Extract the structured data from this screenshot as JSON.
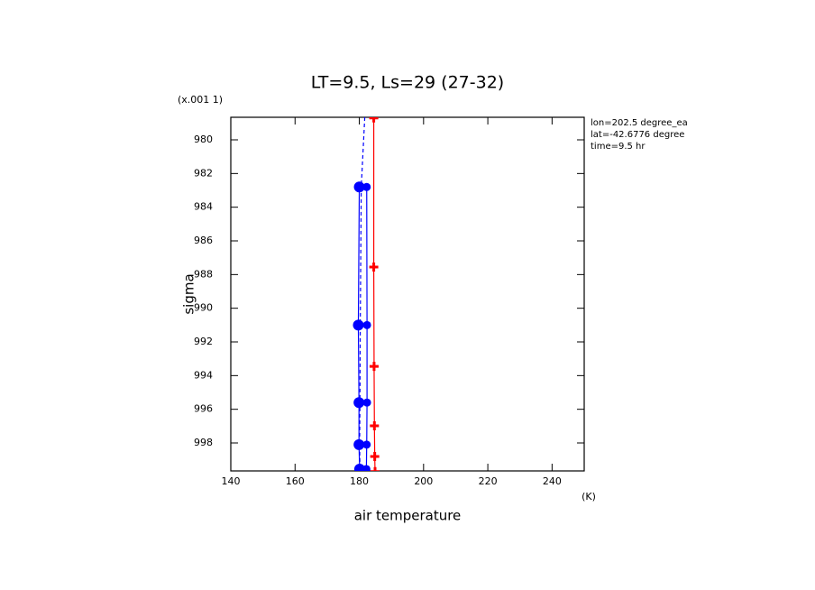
{
  "chart_data": {
    "type": "line",
    "title": "LT=9.5, Ls=29 (27-32)",
    "y_scale_label": "(x.001 1)",
    "y_label": "sigma",
    "x_label": "air temperature",
    "x_unit": "(K)",
    "annotations": [
      "lon=202.5 degree_ea",
      "lat=-42.6776 degree",
      "time=9.5 hr"
    ],
    "xlim": [
      140,
      250
    ],
    "xticks": [
      140,
      160,
      180,
      200,
      220,
      240
    ],
    "ylim": [
      999.66,
      978.66
    ],
    "yticks": [
      980,
      982,
      984,
      986,
      988,
      990,
      992,
      994,
      996,
      998
    ],
    "series": [
      {
        "color": "#0000ff",
        "dashed": true,
        "marker": "none",
        "sigma": [
          978.66,
          982.8,
          991.0,
          995.6,
          998.1,
          999.55
        ],
        "temperature": [
          181.7,
          180.6,
          180.3,
          180.2,
          180.1,
          180.2
        ]
      },
      {
        "color": "#0000ff",
        "dashed": false,
        "marker": "big-dot",
        "sigma": [
          982.8,
          991.0,
          995.6,
          998.1,
          999.55
        ],
        "temperature": [
          180.0,
          179.7,
          179.9,
          179.9,
          180.1
        ]
      },
      {
        "color": "#0000ff",
        "dashed": false,
        "marker": "small-dot",
        "sigma": [
          982.8,
          991.0,
          995.6,
          998.1,
          999.55
        ],
        "temperature": [
          182.3,
          182.4,
          182.4,
          182.3,
          182.2
        ]
      },
      {
        "color": "#ff0000",
        "dashed": false,
        "marker": "plus",
        "sigma": [
          978.7,
          987.55,
          993.45,
          996.98,
          998.8,
          999.7
        ],
        "temperature": [
          184.5,
          184.5,
          184.6,
          184.7,
          184.8,
          184.9
        ]
      }
    ]
  }
}
